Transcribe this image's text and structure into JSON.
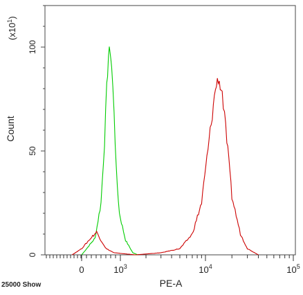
{
  "chart_data": {
    "type": "line",
    "title": "",
    "xlabel": "PE-A",
    "ylabel": "Count",
    "y_multiplier_label": "(x10",
    "y_multiplier_exp": "1",
    "y_multiplier_close": ")",
    "x_scale": "log",
    "footer_left": "25000 Show",
    "yticks": [
      {
        "value": 0,
        "label": "0"
      },
      {
        "value": 50,
        "label": "50"
      },
      {
        "value": 100,
        "label": "100"
      }
    ],
    "ylim": [
      0,
      120
    ],
    "xticks": [
      {
        "label": "0",
        "sup": ""
      },
      {
        "label": "10",
        "sup": "3"
      },
      {
        "label": "10",
        "sup": "4"
      },
      {
        "label": "10",
        "sup": "5"
      }
    ],
    "grid": false,
    "series": [
      {
        "color": "#00cc00",
        "points": [
          [
            0,
            0
          ],
          [
            120,
            8
          ],
          [
            250,
            25
          ],
          [
            350,
            55
          ],
          [
            420,
            80
          ],
          [
            480,
            96
          ],
          [
            540,
            99
          ],
          [
            600,
            90
          ],
          [
            700,
            70
          ],
          [
            800,
            40
          ],
          [
            950,
            20
          ],
          [
            1150,
            7
          ],
          [
            1400,
            1
          ],
          [
            1600,
            0
          ]
        ]
      },
      {
        "color": "#cc0000",
        "points": [
          [
            -60,
            0
          ],
          [
            0,
            3
          ],
          [
            80,
            9
          ],
          [
            150,
            11
          ],
          [
            250,
            7
          ],
          [
            400,
            3
          ],
          [
            700,
            1
          ],
          [
            1500,
            0
          ],
          [
            3000,
            1
          ],
          [
            5000,
            3
          ],
          [
            7000,
            10
          ],
          [
            9000,
            25
          ],
          [
            11000,
            55
          ],
          [
            13000,
            80
          ],
          [
            14000,
            85
          ],
          [
            15500,
            78
          ],
          [
            17500,
            55
          ],
          [
            20000,
            28
          ],
          [
            25000,
            10
          ],
          [
            30000,
            3
          ],
          [
            40000,
            0
          ]
        ]
      }
    ]
  }
}
